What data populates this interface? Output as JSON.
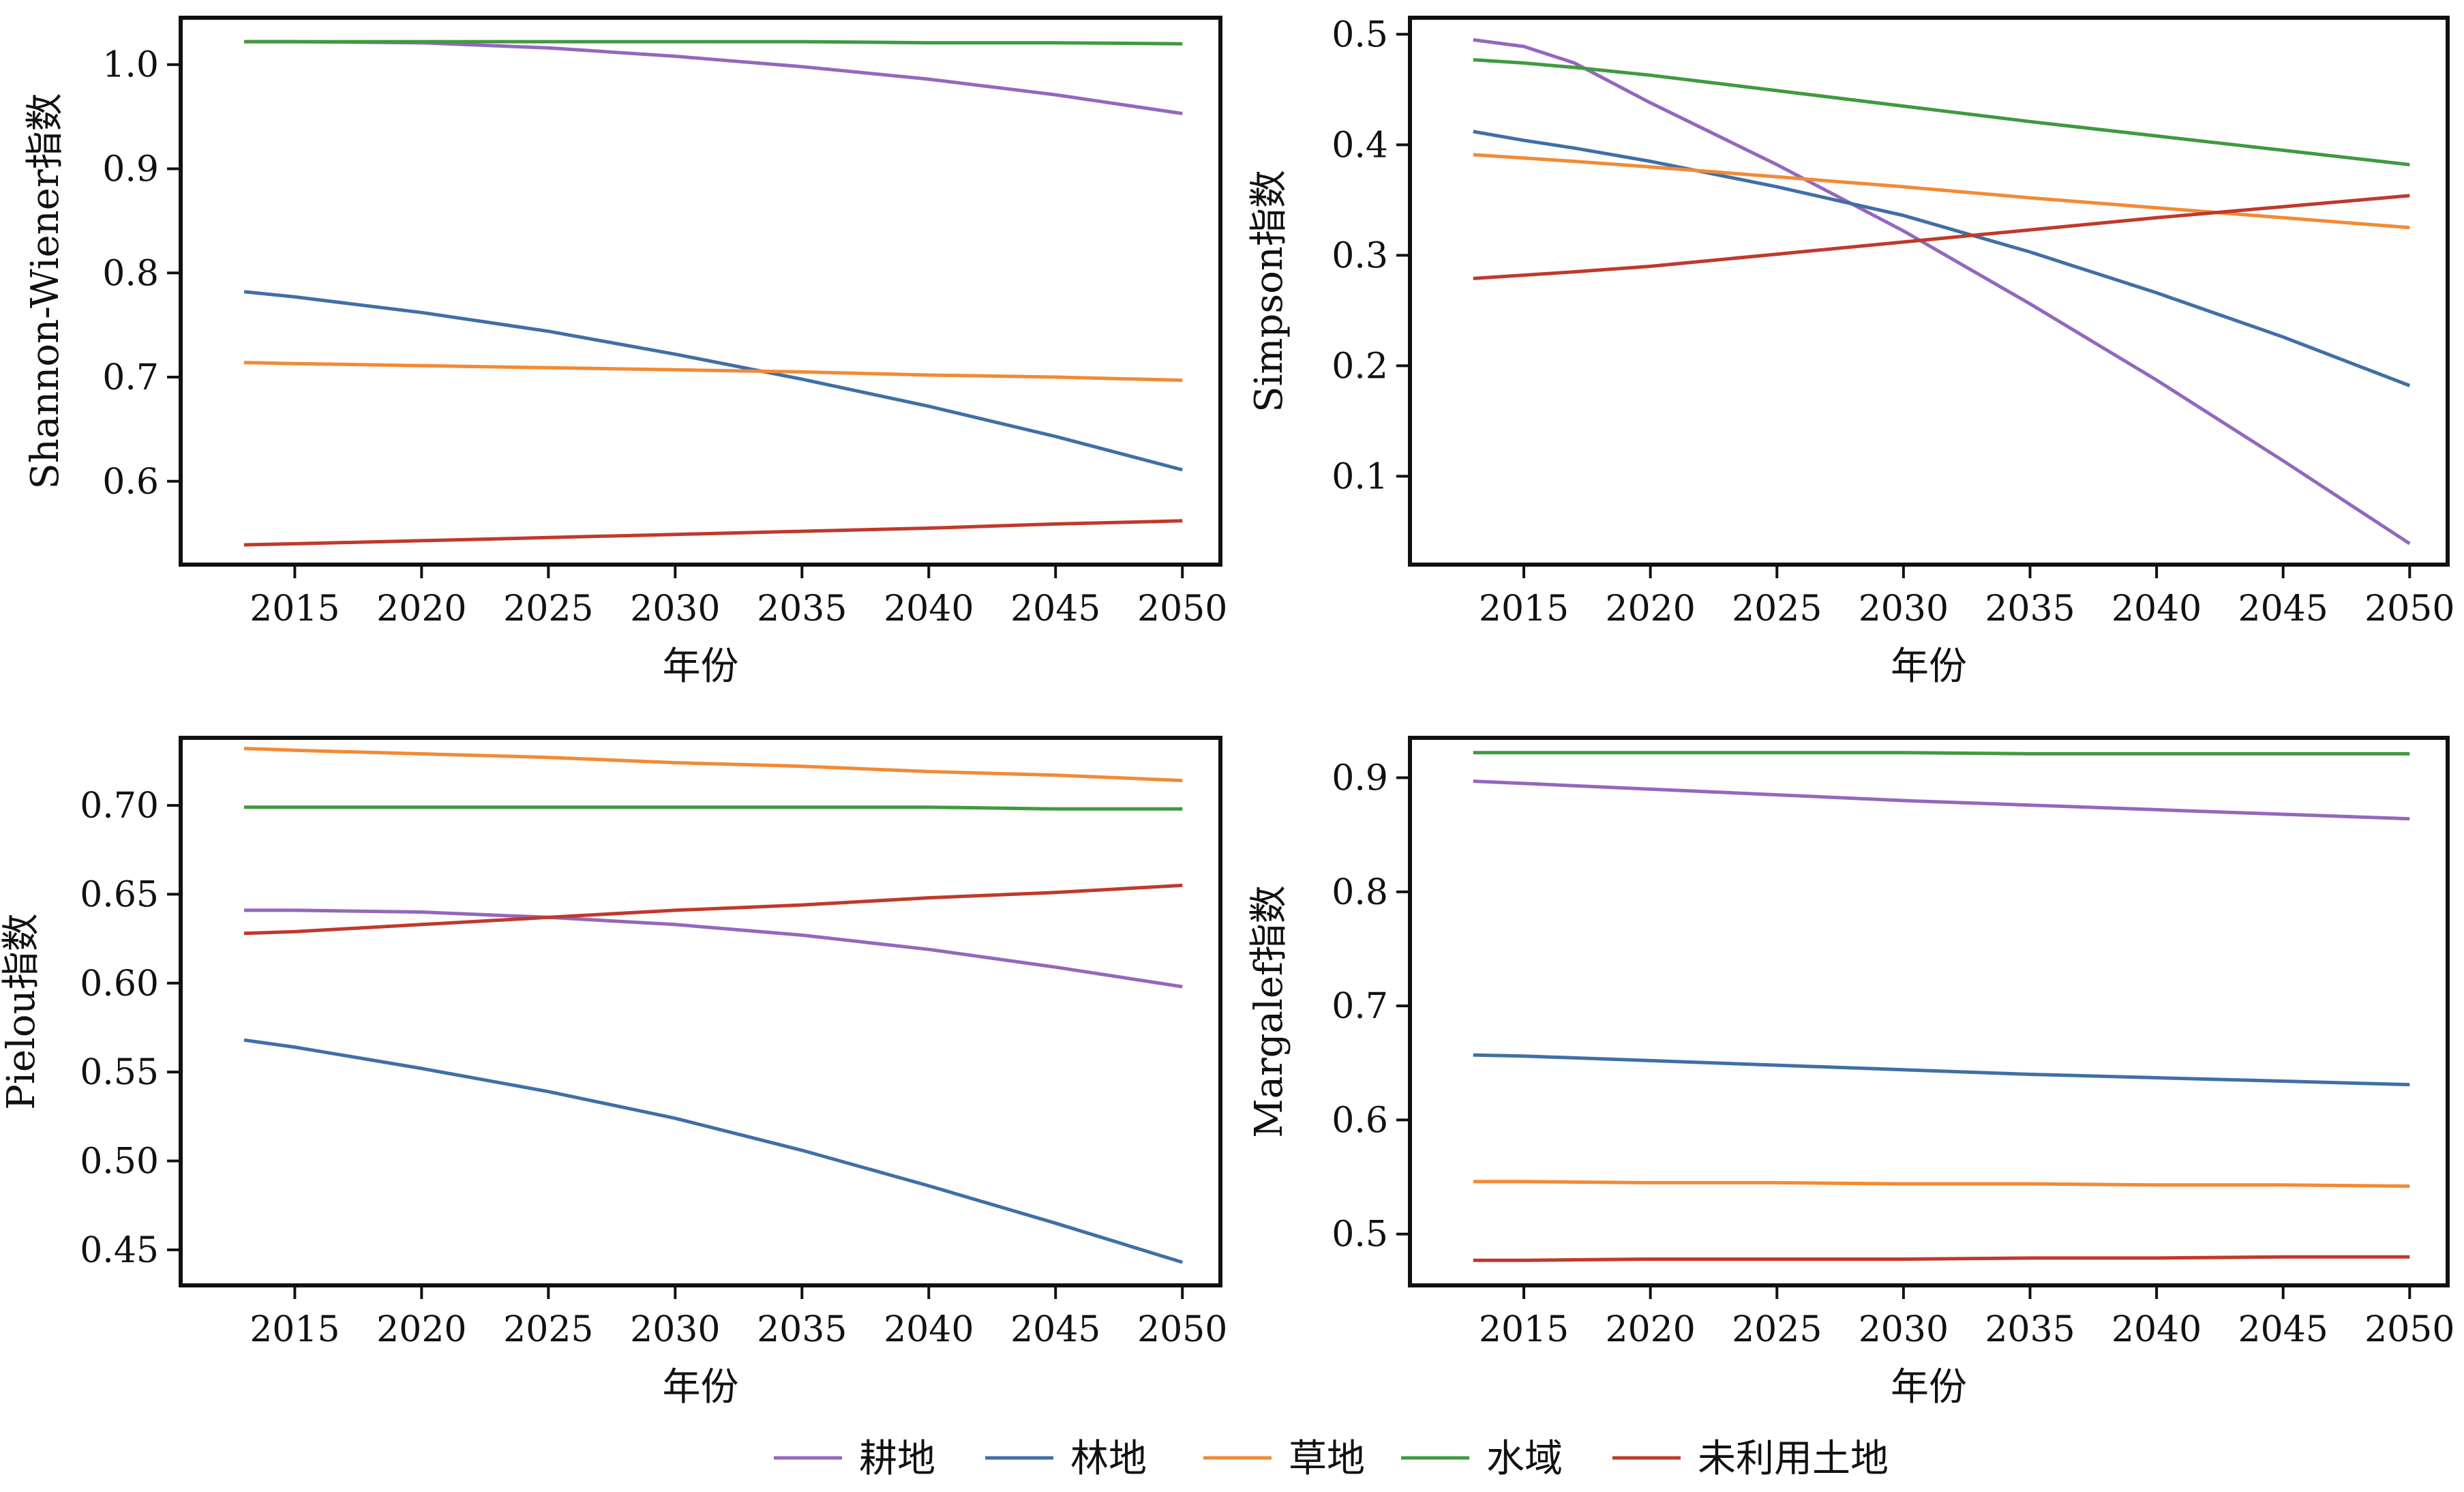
{
  "colors": {
    "耕地": "#9467bd",
    "林地": "#3f6fa6",
    "草地": "#f28a35",
    "水域": "#3f9a3f",
    "未利用土地": "#c0392b"
  },
  "legend": [
    "耕地",
    "林地",
    "草地",
    "水域",
    "未利用土地"
  ],
  "chart_data": [
    {
      "type": "line",
      "xlabel": "年份",
      "ylabel": "Shannon-Wiener指数",
      "xlim": [
        2010.5,
        2051.5
      ],
      "ylim": [
        0.52,
        1.045
      ],
      "xticks": [
        2015,
        2020,
        2025,
        2030,
        2035,
        2040,
        2045,
        2050
      ],
      "yticks": [
        0.6,
        0.7,
        0.8,
        0.9,
        1.0
      ],
      "ytick_labels": [
        "0.6",
        "0.7",
        "0.8",
        "0.9",
        "1.0"
      ],
      "x": [
        2013,
        2015,
        2020,
        2025,
        2030,
        2035,
        2040,
        2045,
        2050
      ],
      "series": [
        {
          "name": "耕地",
          "values": [
            1.022,
            1.022,
            1.021,
            1.016,
            1.008,
            0.998,
            0.986,
            0.971,
            0.953
          ]
        },
        {
          "name": "林地",
          "values": [
            0.782,
            0.777,
            0.762,
            0.744,
            0.722,
            0.698,
            0.672,
            0.643,
            0.611
          ]
        },
        {
          "name": "草地",
          "values": [
            0.714,
            0.713,
            0.711,
            0.709,
            0.707,
            0.705,
            0.702,
            0.7,
            0.697
          ]
        },
        {
          "name": "水域",
          "values": [
            1.022,
            1.022,
            1.022,
            1.022,
            1.022,
            1.022,
            1.021,
            1.021,
            1.02
          ]
        },
        {
          "name": "未利用土地",
          "values": [
            0.539,
            0.54,
            0.543,
            0.546,
            0.549,
            0.552,
            0.555,
            0.559,
            0.562
          ]
        }
      ]
    },
    {
      "type": "line",
      "xlabel": "年份",
      "ylabel": "Simpson指数",
      "xlim": [
        2010.5,
        2051.5
      ],
      "ylim": [
        0.02,
        0.515
      ],
      "xticks": [
        2015,
        2020,
        2025,
        2030,
        2035,
        2040,
        2045,
        2050
      ],
      "yticks": [
        0.1,
        0.2,
        0.3,
        0.4,
        0.5
      ],
      "ytick_labels": [
        "0.1",
        "0.2",
        "0.3",
        "0.4",
        "0.5"
      ],
      "x": [
        2013,
        2015,
        2017,
        2020,
        2025,
        2030,
        2035,
        2040,
        2045,
        2050
      ],
      "series": [
        {
          "name": "耕地",
          "values": [
            0.495,
            0.489,
            0.474,
            0.438,
            0.382,
            0.322,
            0.256,
            0.187,
            0.114,
            0.039
          ]
        },
        {
          "name": "林地",
          "values": [
            0.412,
            0.404,
            0.397,
            0.385,
            0.362,
            0.336,
            0.303,
            0.266,
            0.226,
            0.182
          ]
        },
        {
          "name": "草地",
          "values": [
            0.391,
            0.388,
            0.385,
            0.38,
            0.371,
            0.362,
            0.352,
            0.343,
            0.334,
            0.325
          ]
        },
        {
          "name": "水域",
          "values": [
            0.477,
            0.474,
            0.47,
            0.463,
            0.449,
            0.435,
            0.421,
            0.408,
            0.395,
            0.382
          ]
        },
        {
          "name": "未利用土地",
          "values": [
            0.279,
            0.282,
            0.285,
            0.29,
            0.301,
            0.312,
            0.323,
            0.334,
            0.344,
            0.354
          ]
        }
      ]
    },
    {
      "type": "line",
      "xlabel": "年份",
      "ylabel": "Pielou指数",
      "xlim": [
        2010.5,
        2051.5
      ],
      "ylim": [
        0.43,
        0.738
      ],
      "xticks": [
        2015,
        2020,
        2025,
        2030,
        2035,
        2040,
        2045,
        2050
      ],
      "yticks": [
        0.45,
        0.5,
        0.55,
        0.6,
        0.65,
        0.7
      ],
      "ytick_labels": [
        "0.45",
        "0.50",
        "0.55",
        "0.60",
        "0.65",
        "0.70"
      ],
      "x": [
        2013,
        2015,
        2020,
        2025,
        2030,
        2035,
        2040,
        2045,
        2050
      ],
      "series": [
        {
          "name": "耕地",
          "values": [
            0.641,
            0.641,
            0.64,
            0.637,
            0.633,
            0.627,
            0.619,
            0.609,
            0.598
          ]
        },
        {
          "name": "林地",
          "values": [
            0.568,
            0.564,
            0.552,
            0.539,
            0.524,
            0.506,
            0.486,
            0.465,
            0.443
          ]
        },
        {
          "name": "草地",
          "values": [
            0.732,
            0.731,
            0.729,
            0.727,
            0.724,
            0.722,
            0.719,
            0.717,
            0.714
          ]
        },
        {
          "name": "水域",
          "values": [
            0.699,
            0.699,
            0.699,
            0.699,
            0.699,
            0.699,
            0.699,
            0.698,
            0.698
          ]
        },
        {
          "name": "未利用土地",
          "values": [
            0.628,
            0.629,
            0.633,
            0.637,
            0.641,
            0.644,
            0.648,
            0.651,
            0.655
          ]
        }
      ]
    },
    {
      "type": "line",
      "xlabel": "年份",
      "ylabel": "Margalef指数",
      "xlim": [
        2010.5,
        2051.5
      ],
      "ylim": [
        0.455,
        0.935
      ],
      "xticks": [
        2015,
        2020,
        2025,
        2030,
        2035,
        2040,
        2045,
        2050
      ],
      "yticks": [
        0.5,
        0.6,
        0.7,
        0.8,
        0.9
      ],
      "ytick_labels": [
        "0.5",
        "0.6",
        "0.7",
        "0.8",
        "0.9"
      ],
      "x": [
        2013,
        2015,
        2020,
        2025,
        2030,
        2035,
        2040,
        2045,
        2050
      ],
      "series": [
        {
          "name": "耕地",
          "values": [
            0.897,
            0.895,
            0.89,
            0.885,
            0.88,
            0.876,
            0.872,
            0.868,
            0.864
          ]
        },
        {
          "name": "林地",
          "values": [
            0.657,
            0.656,
            0.652,
            0.648,
            0.644,
            0.64,
            0.637,
            0.634,
            0.631
          ]
        },
        {
          "name": "草地",
          "values": [
            0.546,
            0.546,
            0.545,
            0.545,
            0.544,
            0.544,
            0.543,
            0.543,
            0.542
          ]
        },
        {
          "name": "水域",
          "values": [
            0.922,
            0.922,
            0.922,
            0.922,
            0.922,
            0.921,
            0.921,
            0.921,
            0.921
          ]
        },
        {
          "name": "未利用土地",
          "values": [
            0.477,
            0.477,
            0.478,
            0.478,
            0.478,
            0.479,
            0.479,
            0.48,
            0.48
          ]
        }
      ]
    }
  ]
}
